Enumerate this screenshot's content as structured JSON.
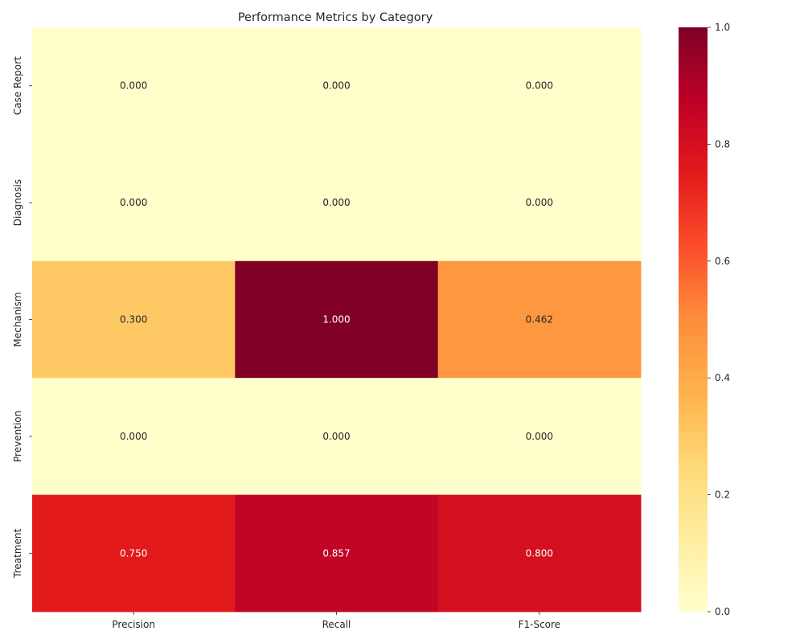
{
  "chart_data": {
    "type": "heatmap",
    "title": "Performance Metrics by Category",
    "columns": [
      "Precision",
      "Recall",
      "F1-Score"
    ],
    "rows": [
      "Case Report",
      "Diagnosis",
      "Mechanism",
      "Prevention",
      "Treatment"
    ],
    "values": [
      [
        0.0,
        0.0,
        0.0
      ],
      [
        0.0,
        0.0,
        0.0
      ],
      [
        0.3,
        1.0,
        0.462
      ],
      [
        0.0,
        0.0,
        0.0
      ],
      [
        0.75,
        0.857,
        0.8
      ]
    ],
    "value_format": "0.000",
    "colormap": "YlOrRd",
    "colormap_stops": [
      "#ffffcc",
      "#ffeda0",
      "#fed976",
      "#feb24c",
      "#fd8d3c",
      "#fc4e2a",
      "#e31a1c",
      "#bd0026",
      "#800026"
    ],
    "colorbar": {
      "vmin": 0.0,
      "vmax": 1.0,
      "ticks": [
        0.0,
        0.2,
        0.4,
        0.6,
        0.8,
        1.0
      ],
      "tick_labels": [
        "0.0",
        "0.2",
        "0.4",
        "0.6",
        "0.8",
        "1.0"
      ]
    },
    "label_color_dark": "#262626",
    "label_color_light": "#ffffff"
  }
}
